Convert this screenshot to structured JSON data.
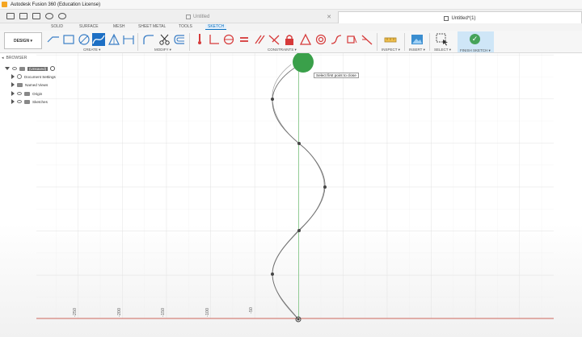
{
  "window": {
    "title": "Autodesk Fusion 360 (Education License)"
  },
  "doc_tabs": {
    "inactive": "Untitled",
    "active": "Untitled*(1)"
  },
  "ribbon_tabs": [
    "SOLID",
    "SURFACE",
    "MESH",
    "SHEET METAL",
    "TOOLS",
    "SKETCH"
  ],
  "active_tab": "SKETCH",
  "workspace_button": "DESIGN",
  "groups": {
    "create": "CREATE",
    "modify": "MODIFY",
    "constraints": "CONSTRAINTS",
    "inspect": "INSPECT",
    "insert": "INSERT",
    "select": "SELECT",
    "finish": "FINISH SKETCH"
  },
  "browser": {
    "header": "BROWSER",
    "root": "(Unsaved)",
    "items": [
      "Document Settings",
      "Named Views",
      "Origin",
      "Sketches"
    ]
  },
  "tooltip": "Select first point to close",
  "axis_ticks": [
    "-250",
    "-200",
    "-150",
    "-100",
    "-50"
  ],
  "colors": {
    "accent": "#0a6fbf",
    "finish_green": "#46a35a",
    "close_marker": "#3aa04a",
    "axis_red": "#c0392b",
    "axis_green": "#4caf50"
  }
}
